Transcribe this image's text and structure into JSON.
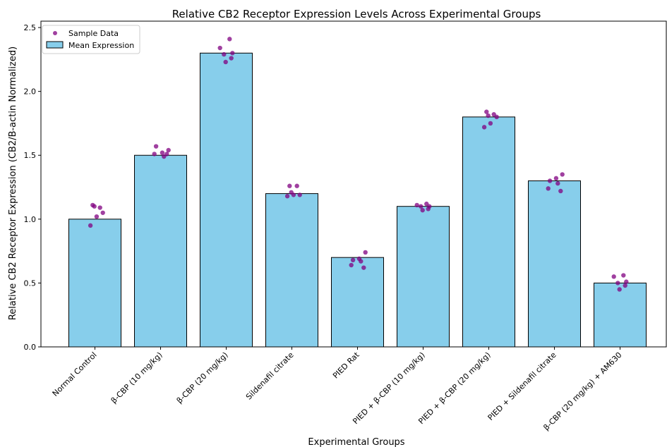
{
  "chart_data": {
    "type": "bar",
    "title": "Relative CB2 Receptor Expression Levels Across Experimental Groups",
    "xlabel": "Experimental Groups",
    "ylabel": "Relative CB2 Receptor Expression (CB2/B-actin Normalized)",
    "ylim": [
      0,
      2.55
    ],
    "yticks": [
      "0.0",
      "0.5",
      "1.0",
      "1.5",
      "2.0",
      "2.5"
    ],
    "categories": [
      "Normal Control",
      "β-CBP (10 mg/kg)",
      "β-CBP (20 mg/kg)",
      "Sildenafil citrate",
      "PIED Rat",
      "PIED + β-CBP (10 mg/kg)",
      "PIED + β-CBP (20 mg/kg)",
      "PIED + Sildenafil citrate",
      "β-CBP (20 mg/kg) + AM630"
    ],
    "series": [
      {
        "name": "Mean Expression",
        "values": [
          1.0,
          1.5,
          2.3,
          1.2,
          0.7,
          1.1,
          1.8,
          1.3,
          0.5
        ]
      }
    ],
    "samples": {
      "name": "Sample Data",
      "values": [
        [
          1.11,
          1.09,
          1.1,
          1.05,
          1.02,
          0.95
        ],
        [
          1.54,
          1.52,
          1.57,
          1.49,
          1.51,
          1.51
        ],
        [
          2.41,
          2.34,
          2.3,
          2.29,
          2.26,
          2.23
        ],
        [
          1.26,
          1.26,
          1.21,
          1.19,
          1.19,
          1.18
        ],
        [
          0.74,
          0.69,
          0.68,
          0.67,
          0.64,
          0.62
        ],
        [
          1.12,
          1.11,
          1.1,
          1.1,
          1.08,
          1.07
        ],
        [
          1.84,
          1.82,
          1.81,
          1.8,
          1.75,
          1.72
        ],
        [
          1.35,
          1.32,
          1.3,
          1.28,
          1.24,
          1.22
        ],
        [
          0.56,
          0.55,
          0.51,
          0.5,
          0.48,
          0.45
        ]
      ]
    },
    "legend": {
      "placement": "top-left",
      "entries": [
        "Sample Data",
        "Mean Expression"
      ]
    },
    "grid": false,
    "colors": {
      "bar_fill": "#87CEEB",
      "bar_edge": "#000000",
      "points": "#800080"
    }
  }
}
